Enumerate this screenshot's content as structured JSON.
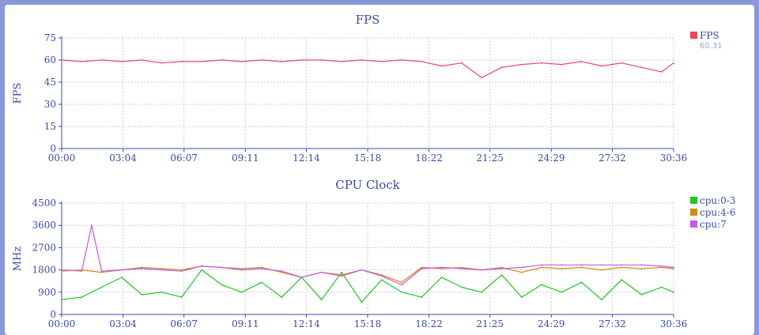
{
  "chart_data": [
    {
      "type": "line",
      "title": "FPS",
      "ylabel": "FPS",
      "xlabel": "",
      "ylim": [
        0,
        75
      ],
      "yticks": [
        "0",
        "15",
        "30",
        "45",
        "60",
        "75"
      ],
      "xlim_seconds": [
        0,
        1836
      ],
      "xticks": [
        "00:00",
        "03:04",
        "06:07",
        "09:11",
        "12:14",
        "15:18",
        "18:22",
        "21:25",
        "24:29",
        "27:32",
        "30:36"
      ],
      "grid": true,
      "legend_position": "right",
      "series": [
        {
          "name": "FPS",
          "color": "#e8495e",
          "legend_value": "60.31",
          "x": [
            "00:00",
            "01:00",
            "02:00",
            "03:00",
            "04:00",
            "05:00",
            "06:00",
            "07:00",
            "08:00",
            "09:00",
            "10:00",
            "11:00",
            "12:00",
            "13:00",
            "14:00",
            "15:00",
            "16:00",
            "17:00",
            "18:00",
            "19:00",
            "20:00",
            "21:00",
            "22:00",
            "23:00",
            "24:00",
            "25:00",
            "26:00",
            "27:00",
            "28:00",
            "29:00",
            "30:00",
            "30:36"
          ],
          "values": [
            60,
            59,
            60,
            59,
            60,
            58,
            59,
            59,
            60,
            59,
            60,
            59,
            60,
            60,
            59,
            60,
            59,
            60,
            59,
            56,
            58,
            48,
            55,
            57,
            58,
            57,
            59,
            56,
            58,
            55,
            52,
            58
          ]
        }
      ]
    },
    {
      "type": "line",
      "title": "CPU Clock",
      "ylabel": "MHz",
      "xlabel": "",
      "ylim": [
        0,
        4500
      ],
      "yticks": [
        "0",
        "900",
        "1800",
        "2700",
        "3600",
        "4500"
      ],
      "xlim_seconds": [
        0,
        1836
      ],
      "xticks": [
        "00:00",
        "03:04",
        "06:07",
        "09:11",
        "12:14",
        "15:18",
        "18:22",
        "21:25",
        "24:29",
        "27:32",
        "30:36"
      ],
      "grid": true,
      "legend_position": "right",
      "series": [
        {
          "name": "cpu:0-3",
          "color": "#22c322",
          "x": [
            "00:00",
            "01:00",
            "02:00",
            "03:00",
            "04:00",
            "05:00",
            "06:00",
            "07:00",
            "08:00",
            "09:00",
            "10:00",
            "11:00",
            "12:00",
            "13:00",
            "14:00",
            "15:00",
            "16:00",
            "17:00",
            "18:00",
            "19:00",
            "20:00",
            "21:00",
            "22:00",
            "23:00",
            "24:00",
            "25:00",
            "26:00",
            "27:00",
            "28:00",
            "29:00",
            "30:00",
            "30:36"
          ],
          "values": [
            600,
            700,
            1100,
            1500,
            800,
            900,
            700,
            1800,
            1200,
            900,
            1300,
            700,
            1500,
            600,
            1700,
            500,
            1400,
            900,
            700,
            1500,
            1100,
            900,
            1600,
            700,
            1200,
            900,
            1300,
            600,
            1400,
            800,
            1100,
            900
          ]
        },
        {
          "name": "cpu:4-6",
          "color": "#d38c10",
          "x": [
            "00:00",
            "01:00",
            "02:00",
            "03:00",
            "04:00",
            "05:00",
            "06:00",
            "07:00",
            "08:00",
            "09:00",
            "10:00",
            "11:00",
            "12:00",
            "13:00",
            "14:00",
            "15:00",
            "16:00",
            "17:00",
            "18:00",
            "19:00",
            "20:00",
            "21:00",
            "22:00",
            "23:00",
            "24:00",
            "25:00",
            "26:00",
            "27:00",
            "28:00",
            "29:00",
            "30:00",
            "30:36"
          ],
          "values": [
            1750,
            1800,
            1700,
            1800,
            1900,
            1850,
            1800,
            1950,
            1900,
            1850,
            1900,
            1700,
            1500,
            1700,
            1600,
            1800,
            1600,
            1300,
            1900,
            1850,
            1900,
            1800,
            1900,
            1700,
            1900,
            1850,
            1900,
            1800,
            1900,
            1850,
            1900,
            1850
          ]
        },
        {
          "name": "cpu:7",
          "color": "#c45ae8",
          "x": [
            "00:00",
            "01:00",
            "01:30",
            "02:00",
            "03:00",
            "04:00",
            "05:00",
            "06:00",
            "07:00",
            "08:00",
            "09:00",
            "10:00",
            "11:00",
            "12:00",
            "13:00",
            "14:00",
            "15:00",
            "16:00",
            "17:00",
            "18:00",
            "19:00",
            "20:00",
            "21:00",
            "22:00",
            "23:00",
            "24:00",
            "25:00",
            "26:00",
            "27:00",
            "28:00",
            "29:00",
            "30:00",
            "30:36"
          ],
          "values": [
            1800,
            1750,
            3600,
            1750,
            1800,
            1850,
            1800,
            1750,
            1950,
            1900,
            1800,
            1850,
            1750,
            1500,
            1700,
            1550,
            1800,
            1550,
            1200,
            1850,
            1900,
            1850,
            1800,
            1850,
            1900,
            2000,
            2000,
            2000,
            2000,
            2000,
            2000,
            1950,
            1900
          ]
        }
      ]
    }
  ]
}
